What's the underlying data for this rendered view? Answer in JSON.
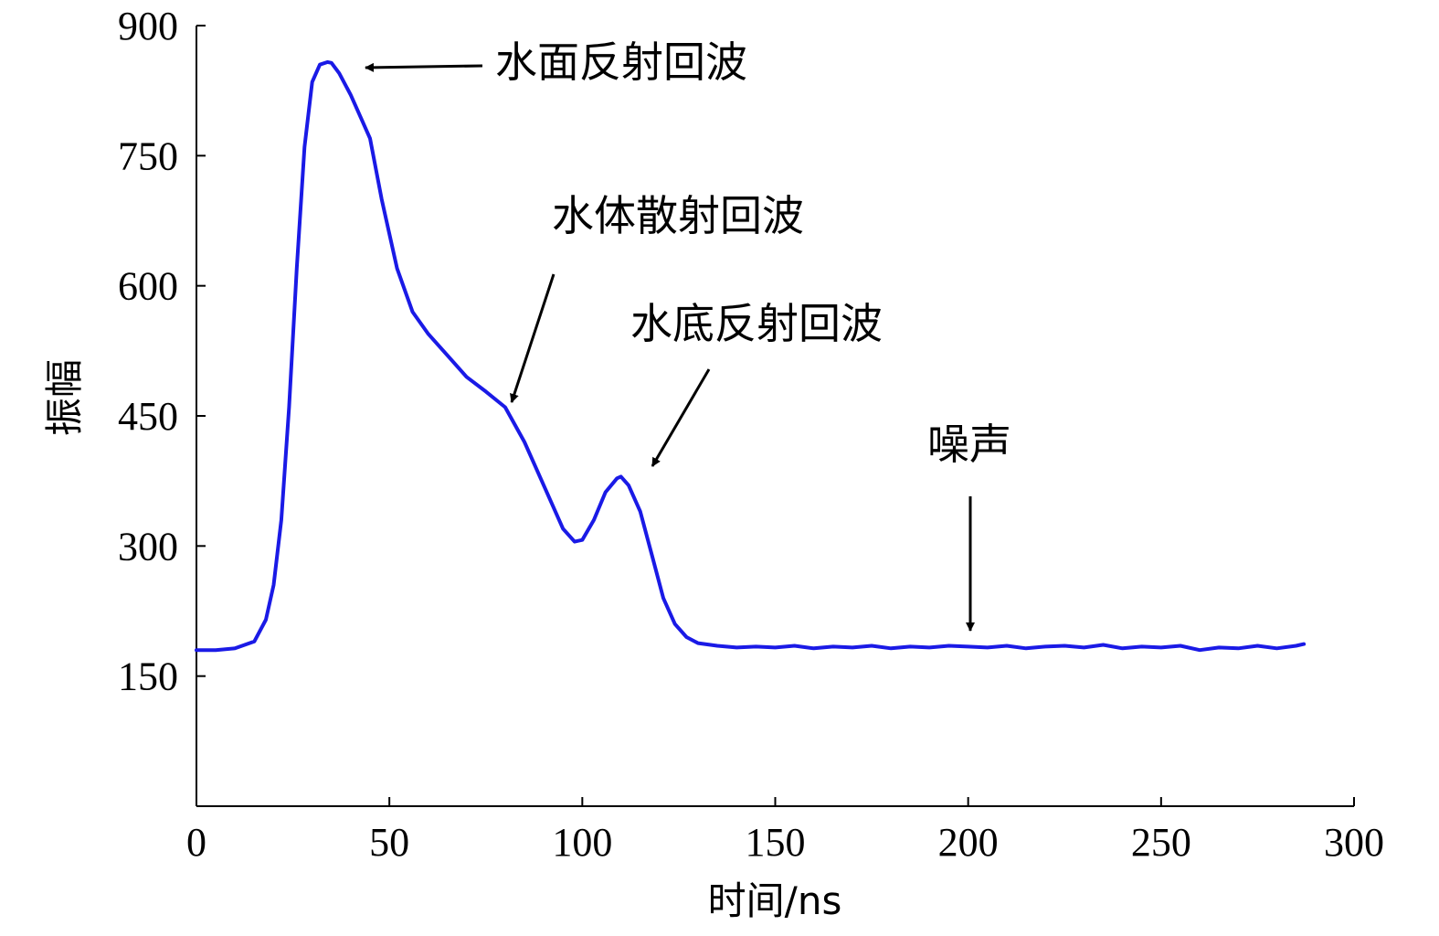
{
  "chart_data": {
    "type": "line",
    "title": "",
    "xlabel": "时间/ns",
    "ylabel": "振幅",
    "xlim": [
      0,
      300
    ],
    "ylim": [
      0,
      900
    ],
    "xticks": [
      0,
      50,
      100,
      150,
      200,
      250,
      300
    ],
    "yticks": [
      150,
      300,
      450,
      600,
      750,
      900
    ],
    "grid": false,
    "legend": "none",
    "series": [
      {
        "color": "#1a1ae6",
        "x": [
          0,
          5,
          10,
          15,
          18,
          20,
          22,
          24,
          26,
          28,
          30,
          32,
          34,
          35,
          37,
          40,
          45,
          48,
          52,
          56,
          60,
          65,
          70,
          75,
          80,
          85,
          90,
          95,
          98,
          100,
          103,
          106,
          109,
          110,
          112,
          115,
          118,
          121,
          124,
          127,
          130,
          135,
          140,
          145,
          150,
          155,
          160,
          165,
          170,
          175,
          180,
          185,
          190,
          195,
          200,
          205,
          210,
          215,
          220,
          225,
          230,
          235,
          240,
          245,
          250,
          255,
          260,
          265,
          270,
          275,
          280,
          285,
          287
        ],
        "y": [
          180,
          180,
          182,
          190,
          215,
          255,
          330,
          460,
          620,
          760,
          835,
          855,
          858,
          857,
          845,
          820,
          770,
          700,
          620,
          570,
          545,
          520,
          495,
          478,
          460,
          420,
          370,
          320,
          305,
          307,
          330,
          362,
          378,
          380,
          370,
          340,
          290,
          240,
          210,
          195,
          188,
          185,
          183,
          184,
          183,
          185,
          182,
          184,
          183,
          185,
          182,
          184,
          183,
          185,
          184,
          183,
          185,
          182,
          184,
          185,
          183,
          186,
          182,
          184,
          183,
          185,
          180,
          183,
          182,
          185,
          182,
          185,
          187
        ]
      }
    ],
    "annotations": [
      {
        "text": "水面反射回波"
      },
      {
        "text": "水体散射回波"
      },
      {
        "text": "水底反射回波"
      },
      {
        "text": "噪声"
      }
    ]
  }
}
